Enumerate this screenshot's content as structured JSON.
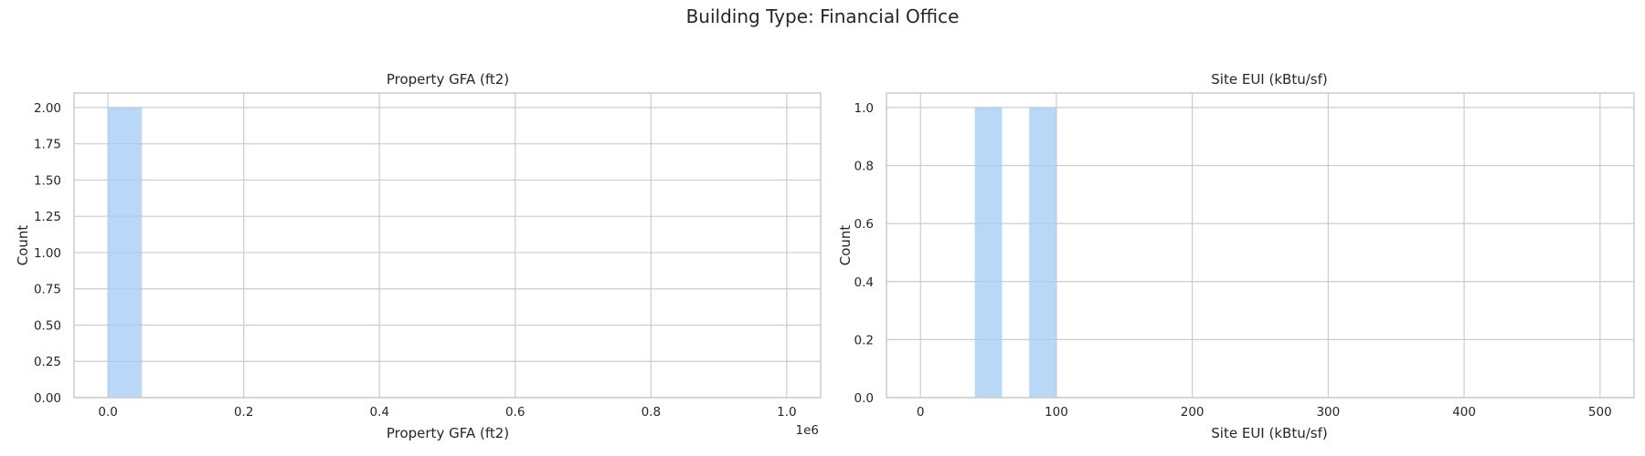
{
  "figure": {
    "title": "Building Type: Financial Office"
  },
  "chart_data": [
    {
      "type": "bar",
      "title": "Property GFA (ft2)",
      "xlabel": "Property GFA (ft2)",
      "ylabel": "Count",
      "x_offset_label": "1e6",
      "xlim": [
        -0.05,
        1.05
      ],
      "ylim": [
        0,
        2.1
      ],
      "xticks": [
        0.0,
        0.2,
        0.4,
        0.6,
        0.8,
        1.0
      ],
      "xtick_labels": [
        "0.0",
        "0.2",
        "0.4",
        "0.6",
        "0.8",
        "1.0"
      ],
      "yticks": [
        0,
        0.25,
        0.5,
        0.75,
        1.0,
        1.25,
        1.5,
        1.75,
        2.0
      ],
      "ytick_labels": [
        "0.00",
        "0.25",
        "0.50",
        "0.75",
        "1.00",
        "1.25",
        "1.50",
        "1.75",
        "2.00"
      ],
      "grid": true,
      "bars": [
        {
          "x0": 0.0,
          "x1": 0.05,
          "count": 2
        }
      ],
      "color": "#a1c9f4"
    },
    {
      "type": "bar",
      "title": "Site EUI (kBtu/sf)",
      "xlabel": "Site EUI (kBtu/sf)",
      "ylabel": "Count",
      "xlim": [
        -25,
        525
      ],
      "ylim": [
        0,
        1.05
      ],
      "xticks": [
        0,
        100,
        200,
        300,
        400,
        500
      ],
      "xtick_labels": [
        "0",
        "100",
        "200",
        "300",
        "400",
        "500"
      ],
      "yticks": [
        0,
        0.2,
        0.4,
        0.6,
        0.8,
        1.0
      ],
      "ytick_labels": [
        "0.0",
        "0.2",
        "0.4",
        "0.6",
        "0.8",
        "1.0"
      ],
      "grid": true,
      "bars": [
        {
          "x0": 40,
          "x1": 60,
          "count": 1
        },
        {
          "x0": 80,
          "x1": 100,
          "count": 1
        }
      ],
      "color": "#a1c9f4"
    }
  ]
}
